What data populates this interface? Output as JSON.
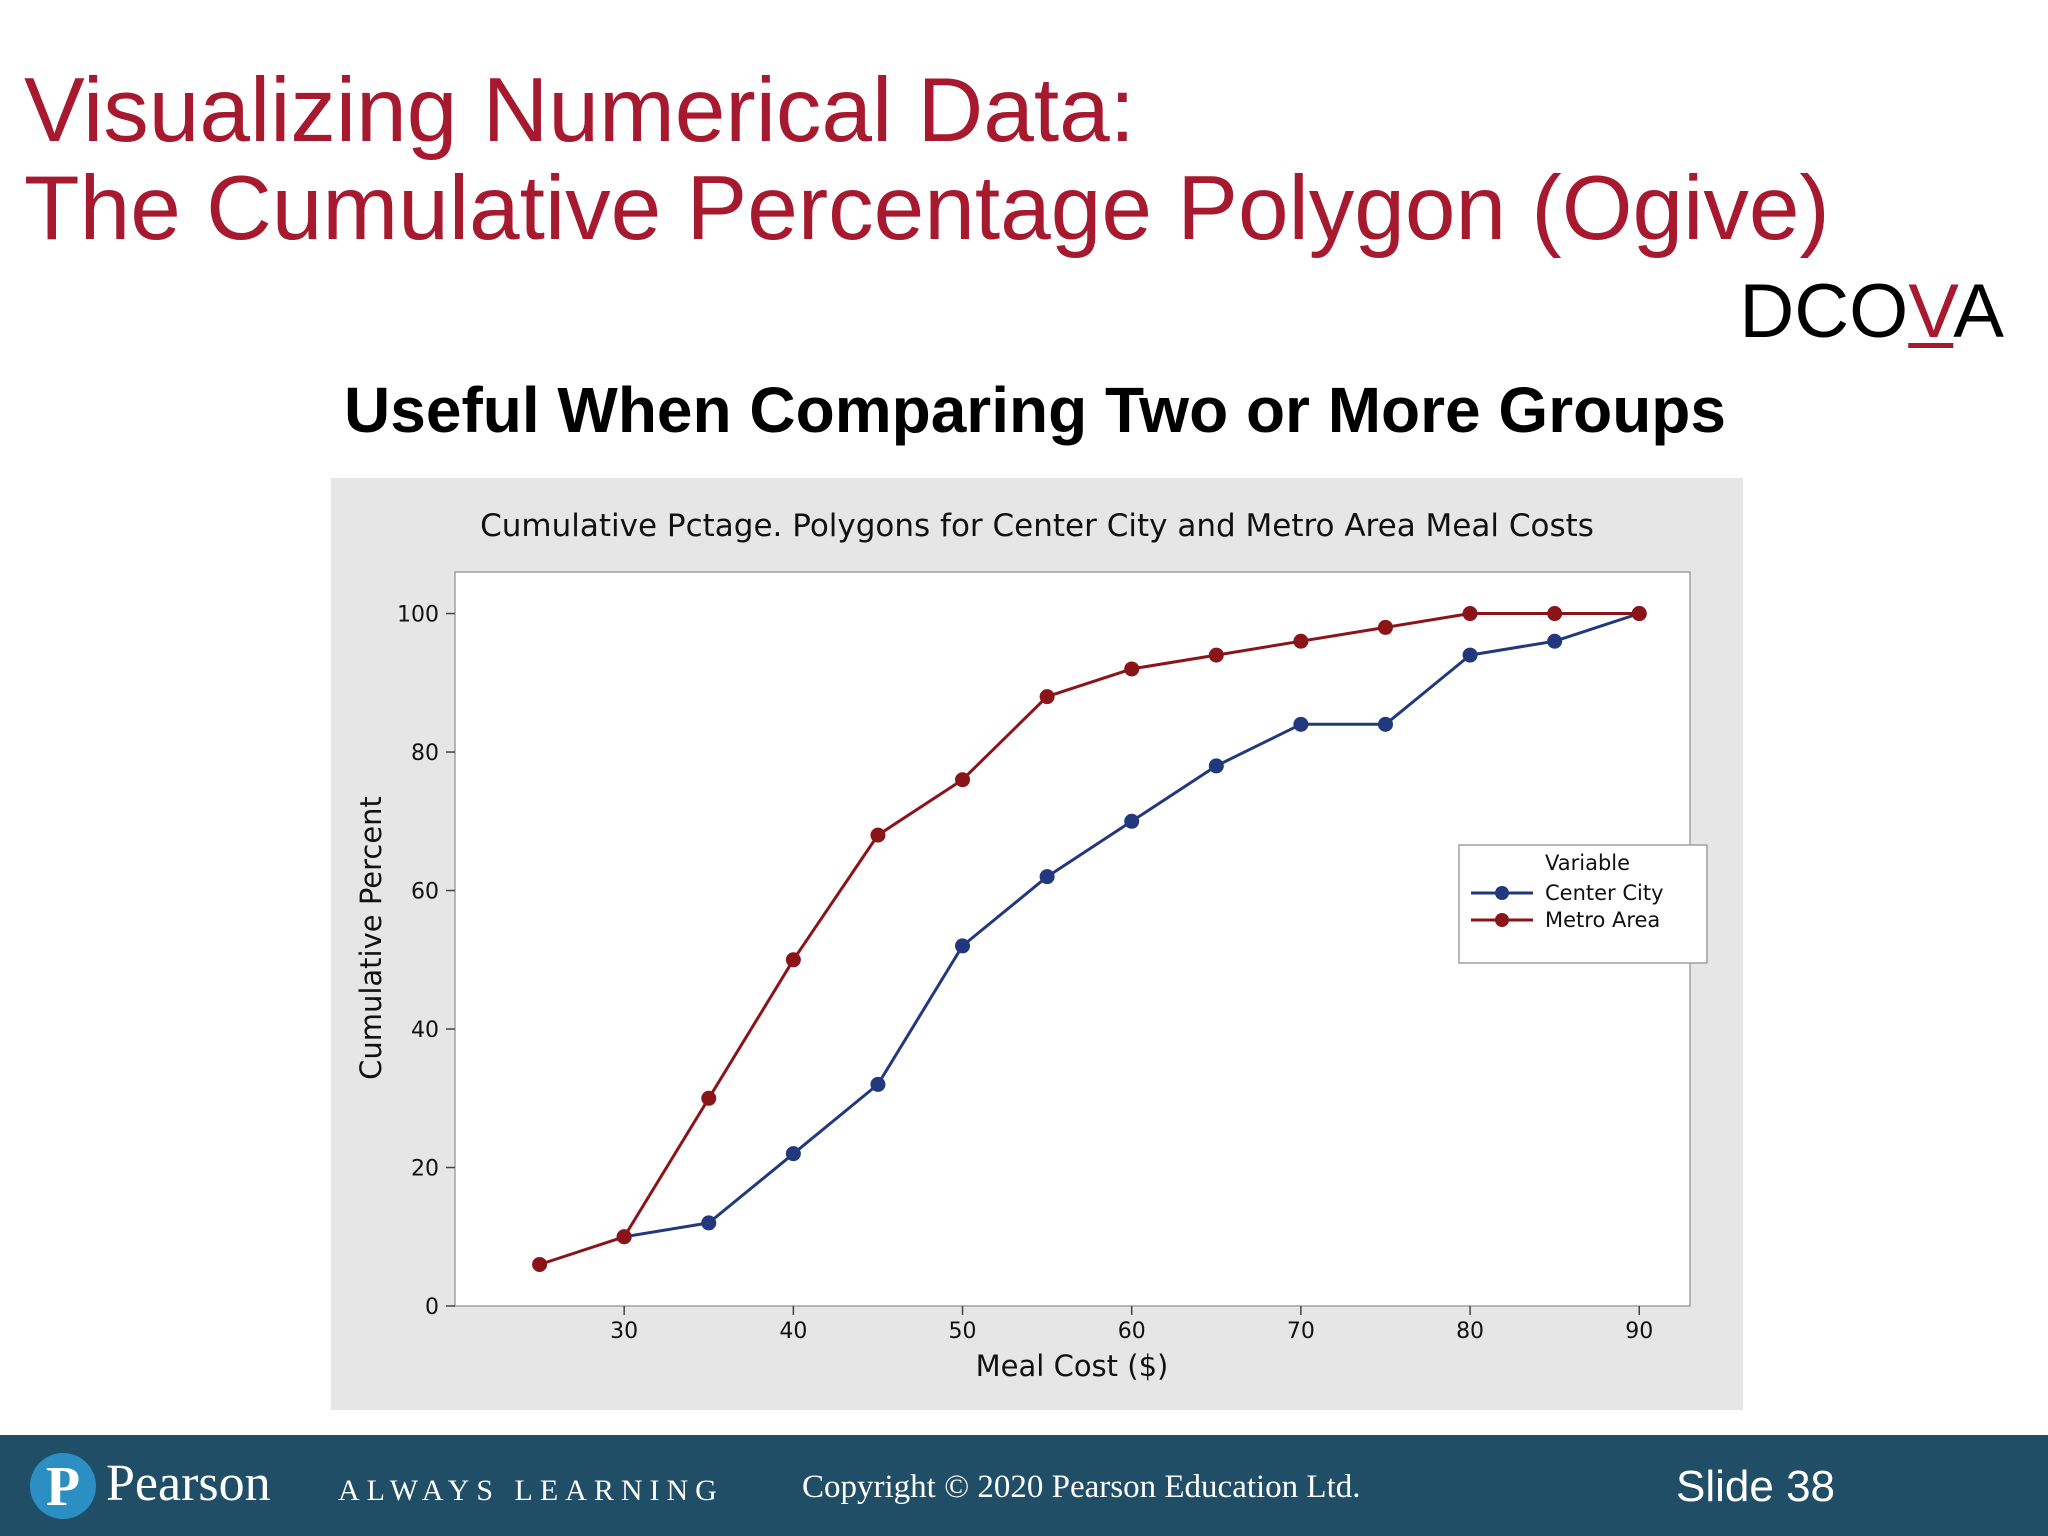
{
  "slide": {
    "title_line1": "Visualizing Numerical Data:",
    "title_line2": "The Cumulative Percentage Polygon (Ogive)",
    "dcova": {
      "before": "DCO",
      "highlight": "V",
      "after": "A"
    },
    "subtitle": "Useful When Comparing Two or More Groups"
  },
  "footer": {
    "logo_letter": "P",
    "brand": "Pearson",
    "tagline": "ALWAYS LEARNING",
    "copyright": "Copyright © 2020 Pearson Education Ltd.",
    "slide_number": "Slide 38"
  },
  "colors": {
    "title": "#A6192E",
    "footer_bg": "#1F4E66",
    "chart_bg": "#E6E6E6",
    "center_city": "#22387E",
    "metro_area": "#8B1419"
  },
  "chart_data": {
    "type": "line",
    "title": "Cumulative Pctage. Polygons for Center City and Metro Area Meal Costs",
    "xlabel": "Meal Cost ($)",
    "ylabel": "Cumulative Percent",
    "xlim": [
      20,
      93
    ],
    "ylim": [
      0,
      106
    ],
    "xticks": [
      30,
      40,
      50,
      60,
      70,
      80,
      90
    ],
    "yticks": [
      0,
      20,
      40,
      60,
      80,
      100
    ],
    "grid": false,
    "legend": {
      "title": "Variable",
      "placement": "right"
    },
    "series": [
      {
        "name": "Center City",
        "color": "#22387E",
        "x": [
          30,
          35,
          40,
          45,
          50,
          55,
          60,
          65,
          70,
          75,
          80,
          85,
          90
        ],
        "y": [
          10,
          12,
          22,
          32,
          52,
          62,
          70,
          78,
          84,
          84,
          94,
          96,
          100
        ]
      },
      {
        "name": "Metro Area",
        "color": "#8B1419",
        "x": [
          25,
          30,
          35,
          40,
          45,
          50,
          55,
          60,
          65,
          70,
          75,
          80,
          85,
          90
        ],
        "y": [
          6,
          10,
          30,
          50,
          68,
          76,
          88,
          92,
          94,
          96,
          98,
          100,
          100,
          100
        ]
      }
    ]
  }
}
